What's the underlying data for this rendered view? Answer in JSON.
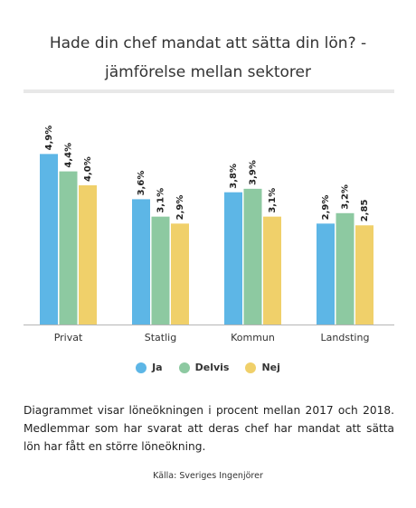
{
  "chart_data": {
    "type": "bar",
    "title_line1": "Hade din chef mandat att sätta din lön? -",
    "title_line2": "jämförelse mellan sektorer",
    "categories": [
      "Privat",
      "Statlig",
      "Kommun",
      "Landsting"
    ],
    "series": [
      {
        "name": "Ja",
        "color": "#5db6e6",
        "values": [
          4.9,
          3.6,
          3.8,
          2.9
        ],
        "labels": [
          "4,9%",
          "3,6%",
          "3,8%",
          "2,9%"
        ]
      },
      {
        "name": "Delvis",
        "color": "#8dc9a1",
        "values": [
          4.4,
          3.1,
          3.9,
          3.2
        ],
        "labels": [
          "4,4%",
          "3,1%",
          "3,9%",
          "3,2%"
        ]
      },
      {
        "name": "Nej",
        "color": "#f0d06a",
        "values": [
          4.0,
          2.9,
          3.1,
          2.85
        ],
        "labels": [
          "4,0%",
          "2,9%",
          "3,1%",
          "2,85"
        ]
      }
    ],
    "ylim": [
      0,
      5
    ],
    "legend_position": "bottom",
    "grid": false
  },
  "description": "Diagrammet visar löneökningen i procent mellan 2017 och 2018. Medlemmar som har svarat att deras chef har mandat att sätta lön har fått en större löneökning.",
  "source": "Källa: Sveriges Ingenjörer"
}
